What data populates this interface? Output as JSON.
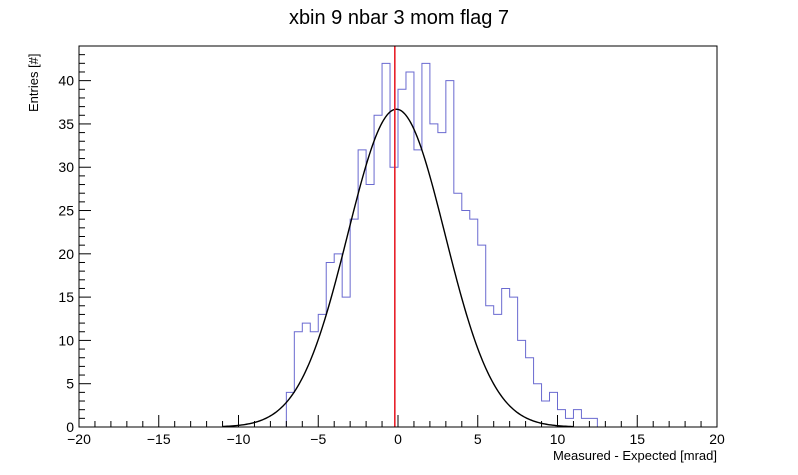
{
  "chart_data": {
    "type": "histogram",
    "title": "xbin 9 nbar 3 mom flag 7",
    "xlabel": "Measured - Expected [mrad]",
    "ylabel": "Entries [#]",
    "xlim": [
      -20,
      20
    ],
    "ylim": [
      0,
      44
    ],
    "x_ticks": [
      -20,
      -15,
      -10,
      -5,
      0,
      5,
      10,
      15,
      20
    ],
    "y_ticks": [
      0,
      5,
      10,
      15,
      20,
      25,
      30,
      35,
      40
    ],
    "grid": false,
    "legend": "none",
    "bin_width": 0.5,
    "bins": {
      "edges_start": -7,
      "values": [
        4,
        11,
        12,
        11,
        13,
        19,
        20,
        15,
        24,
        32,
        28,
        36,
        42,
        30,
        39,
        41,
        32,
        42,
        35,
        34,
        40,
        27,
        25,
        24,
        21,
        14,
        13,
        16,
        15,
        10,
        8,
        5,
        3,
        4,
        2,
        1,
        2,
        1,
        1,
        0
      ]
    },
    "fit_curve": {
      "type": "gaussian",
      "amplitude": 36.7,
      "mean": -0.1,
      "sigma": 3.05,
      "range": [
        -11,
        11
      ],
      "color": "#000000"
    },
    "reference_line": {
      "x": -0.2,
      "color": "#e8202a"
    },
    "histogram_color": "#6a6ad0"
  }
}
